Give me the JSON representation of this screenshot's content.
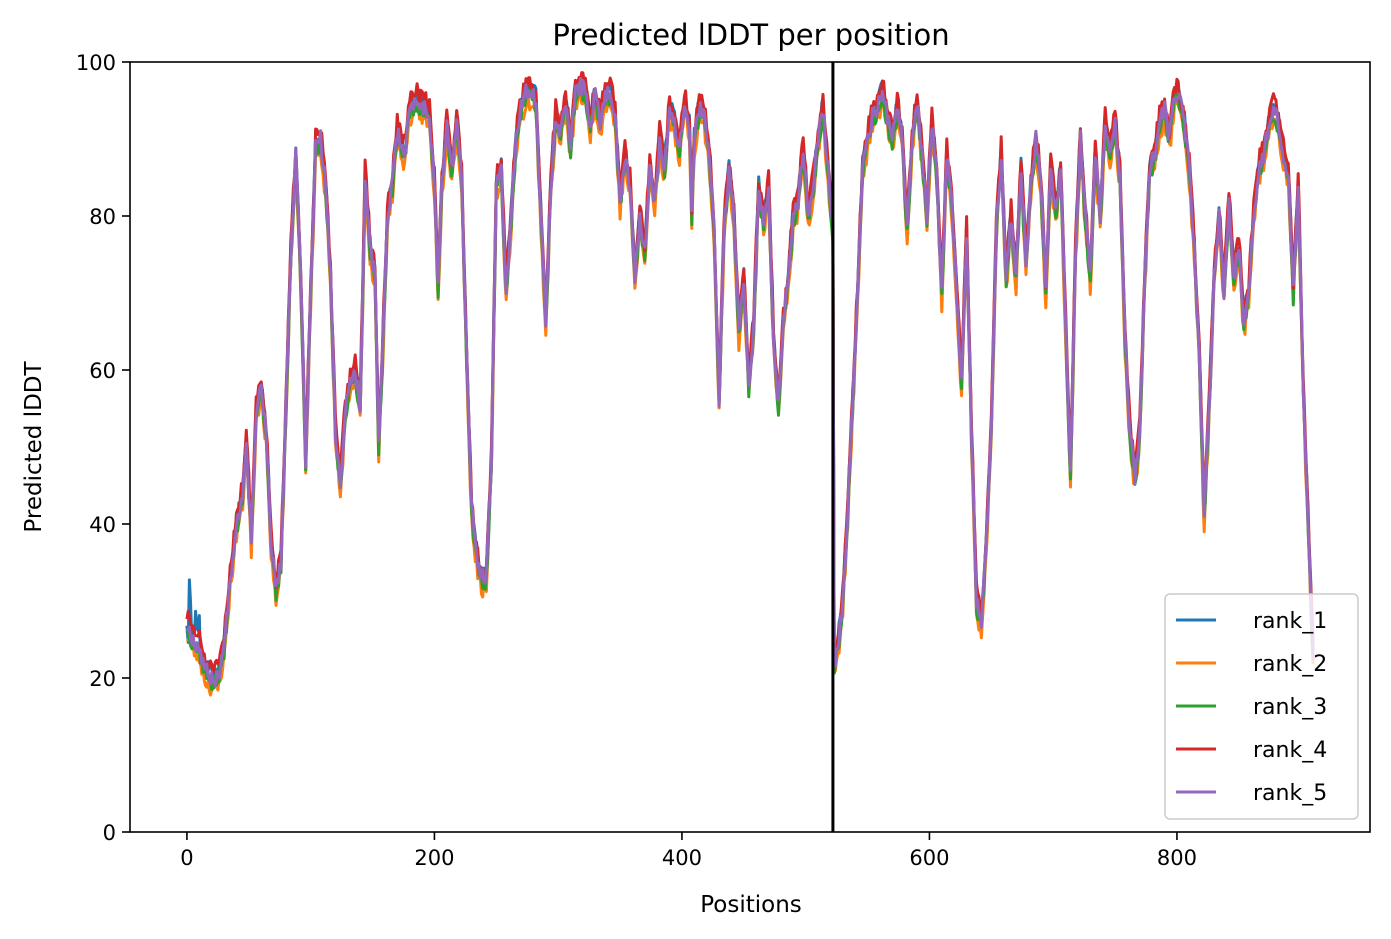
{
  "chart_data": {
    "type": "line",
    "title": "Predicted lDDT per position",
    "xlabel": "Positions",
    "ylabel": "Predicted lDDT",
    "xlim": [
      -46,
      956
    ],
    "ylim": [
      0,
      100
    ],
    "xticks": [
      0,
      200,
      400,
      600,
      800
    ],
    "xtick_labels": [
      "0",
      "200",
      "400",
      "600",
      "800"
    ],
    "yticks": [
      0,
      20,
      40,
      60,
      80,
      100
    ],
    "ytick_labels": [
      "0",
      "20",
      "40",
      "60",
      "80",
      "100"
    ],
    "grid": false,
    "legend_position": "lower-right",
    "chain_boundary_x": 522,
    "x_range": [
      0,
      910
    ],
    "base_profile": [
      [
        0,
        27
      ],
      [
        5,
        25
      ],
      [
        10,
        24
      ],
      [
        15,
        21
      ],
      [
        20,
        20
      ],
      [
        25,
        20
      ],
      [
        30,
        24
      ],
      [
        35,
        33
      ],
      [
        40,
        40
      ],
      [
        45,
        44
      ],
      [
        48,
        51
      ],
      [
        52,
        38
      ],
      [
        56,
        55
      ],
      [
        60,
        58
      ],
      [
        64,
        52
      ],
      [
        68,
        38
      ],
      [
        72,
        31
      ],
      [
        76,
        35
      ],
      [
        80,
        55
      ],
      [
        84,
        75
      ],
      [
        88,
        88
      ],
      [
        92,
        72
      ],
      [
        96,
        48
      ],
      [
        100,
        70
      ],
      [
        104,
        89
      ],
      [
        108,
        90
      ],
      [
        112,
        84
      ],
      [
        116,
        72
      ],
      [
        120,
        52
      ],
      [
        124,
        45
      ],
      [
        128,
        55
      ],
      [
        132,
        58
      ],
      [
        136,
        60
      ],
      [
        140,
        55
      ],
      [
        144,
        85
      ],
      [
        148,
        76
      ],
      [
        152,
        72
      ],
      [
        155,
        50
      ],
      [
        158,
        62
      ],
      [
        162,
        80
      ],
      [
        166,
        84
      ],
      [
        170,
        91
      ],
      [
        176,
        88
      ],
      [
        180,
        94
      ],
      [
        186,
        95
      ],
      [
        192,
        94
      ],
      [
        196,
        93
      ],
      [
        200,
        84
      ],
      [
        203,
        71
      ],
      [
        206,
        84
      ],
      [
        210,
        92
      ],
      [
        214,
        86
      ],
      [
        218,
        92
      ],
      [
        222,
        85
      ],
      [
        226,
        62
      ],
      [
        230,
        42
      ],
      [
        234,
        36
      ],
      [
        238,
        33
      ],
      [
        242,
        33
      ],
      [
        246,
        48
      ],
      [
        250,
        84
      ],
      [
        254,
        86
      ],
      [
        258,
        70
      ],
      [
        262,
        80
      ],
      [
        266,
        90
      ],
      [
        270,
        94
      ],
      [
        274,
        96
      ],
      [
        278,
        96
      ],
      [
        282,
        95
      ],
      [
        286,
        80
      ],
      [
        290,
        66
      ],
      [
        294,
        84
      ],
      [
        298,
        93
      ],
      [
        302,
        91
      ],
      [
        306,
        95
      ],
      [
        310,
        89
      ],
      [
        314,
        96
      ],
      [
        318,
        97
      ],
      [
        322,
        96
      ],
      [
        326,
        92
      ],
      [
        330,
        96
      ],
      [
        334,
        92
      ],
      [
        338,
        96
      ],
      [
        342,
        96
      ],
      [
        346,
        93
      ],
      [
        350,
        82
      ],
      [
        354,
        88
      ],
      [
        358,
        84
      ],
      [
        362,
        72
      ],
      [
        366,
        80
      ],
      [
        370,
        75
      ],
      [
        374,
        86
      ],
      [
        378,
        82
      ],
      [
        382,
        90
      ],
      [
        386,
        86
      ],
      [
        390,
        94
      ],
      [
        394,
        92
      ],
      [
        398,
        89
      ],
      [
        402,
        95
      ],
      [
        406,
        92
      ],
      [
        408,
        80
      ],
      [
        410,
        90
      ],
      [
        414,
        94
      ],
      [
        418,
        93
      ],
      [
        422,
        88
      ],
      [
        426,
        78
      ],
      [
        430,
        56
      ],
      [
        434,
        78
      ],
      [
        438,
        86
      ],
      [
        442,
        80
      ],
      [
        446,
        65
      ],
      [
        450,
        72
      ],
      [
        454,
        58
      ],
      [
        458,
        66
      ],
      [
        462,
        84
      ],
      [
        466,
        79
      ],
      [
        470,
        84
      ],
      [
        474,
        64
      ],
      [
        478,
        55
      ],
      [
        482,
        66
      ],
      [
        486,
        72
      ],
      [
        490,
        80
      ],
      [
        494,
        82
      ],
      [
        498,
        89
      ],
      [
        502,
        80
      ],
      [
        506,
        84
      ],
      [
        510,
        90
      ],
      [
        514,
        94
      ],
      [
        518,
        86
      ],
      [
        522,
        78
      ],
      [
        523,
        22
      ],
      [
        526,
        24
      ],
      [
        530,
        30
      ],
      [
        534,
        42
      ],
      [
        538,
        56
      ],
      [
        542,
        70
      ],
      [
        546,
        86
      ],
      [
        550,
        90
      ],
      [
        554,
        93
      ],
      [
        558,
        94
      ],
      [
        562,
        96
      ],
      [
        566,
        93
      ],
      [
        570,
        90
      ],
      [
        574,
        94
      ],
      [
        578,
        90
      ],
      [
        582,
        78
      ],
      [
        586,
        90
      ],
      [
        590,
        95
      ],
      [
        594,
        88
      ],
      [
        598,
        80
      ],
      [
        602,
        92
      ],
      [
        606,
        85
      ],
      [
        610,
        70
      ],
      [
        614,
        88
      ],
      [
        618,
        82
      ],
      [
        622,
        70
      ],
      [
        626,
        58
      ],
      [
        630,
        78
      ],
      [
        634,
        52
      ],
      [
        638,
        30
      ],
      [
        642,
        27
      ],
      [
        646,
        38
      ],
      [
        650,
        52
      ],
      [
        654,
        78
      ],
      [
        658,
        88
      ],
      [
        662,
        72
      ],
      [
        666,
        80
      ],
      [
        670,
        72
      ],
      [
        674,
        86
      ],
      [
        678,
        74
      ],
      [
        682,
        84
      ],
      [
        686,
        90
      ],
      [
        690,
        84
      ],
      [
        694,
        70
      ],
      [
        698,
        86
      ],
      [
        702,
        80
      ],
      [
        706,
        86
      ],
      [
        710,
        66
      ],
      [
        714,
        46
      ],
      [
        718,
        75
      ],
      [
        722,
        90
      ],
      [
        726,
        80
      ],
      [
        730,
        72
      ],
      [
        734,
        88
      ],
      [
        738,
        80
      ],
      [
        742,
        92
      ],
      [
        746,
        88
      ],
      [
        750,
        92
      ],
      [
        754,
        85
      ],
      [
        758,
        64
      ],
      [
        762,
        52
      ],
      [
        766,
        46
      ],
      [
        770,
        52
      ],
      [
        774,
        72
      ],
      [
        778,
        86
      ],
      [
        782,
        88
      ],
      [
        786,
        92
      ],
      [
        790,
        94
      ],
      [
        794,
        90
      ],
      [
        798,
        96
      ],
      [
        802,
        95
      ],
      [
        806,
        92
      ],
      [
        810,
        86
      ],
      [
        814,
        76
      ],
      [
        818,
        62
      ],
      [
        822,
        41
      ],
      [
        826,
        55
      ],
      [
        830,
        72
      ],
      [
        834,
        80
      ],
      [
        838,
        70
      ],
      [
        842,
        82
      ],
      [
        846,
        72
      ],
      [
        850,
        76
      ],
      [
        854,
        66
      ],
      [
        858,
        70
      ],
      [
        862,
        80
      ],
      [
        866,
        86
      ],
      [
        870,
        88
      ],
      [
        874,
        92
      ],
      [
        878,
        94
      ],
      [
        882,
        92
      ],
      [
        886,
        88
      ],
      [
        890,
        86
      ],
      [
        894,
        70
      ],
      [
        898,
        84
      ],
      [
        902,
        58
      ],
      [
        906,
        40
      ],
      [
        910,
        23
      ]
    ],
    "series": [
      {
        "name": "rank_1",
        "color": "#1f77b4",
        "offset": 0.6,
        "seed": 11
      },
      {
        "name": "rank_2",
        "color": "#ff7f0e",
        "offset": -1.4,
        "seed": 23
      },
      {
        "name": "rank_3",
        "color": "#2ca02c",
        "offset": -0.6,
        "seed": 37
      },
      {
        "name": "rank_4",
        "color": "#d62728",
        "offset": 1.2,
        "seed": 51
      },
      {
        "name": "rank_5",
        "color": "#9467bd",
        "offset": 0.0,
        "seed": 67
      }
    ]
  }
}
